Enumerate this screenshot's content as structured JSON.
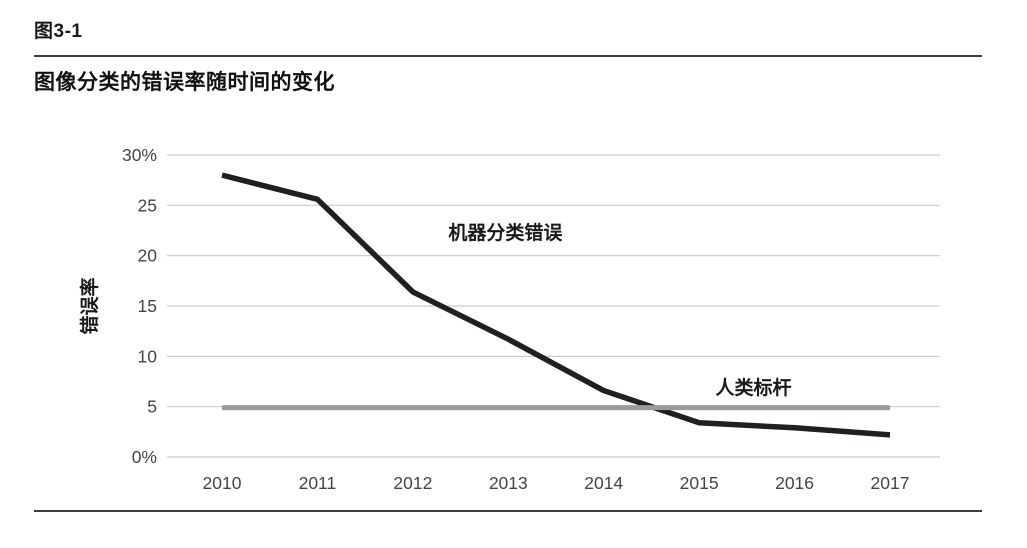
{
  "figure": {
    "number": "图3-1"
  },
  "chart_data": {
    "type": "line",
    "title": "图像分类的错误率随时间的变化",
    "x": [
      2010,
      2011,
      2012,
      2013,
      2014,
      2015,
      2016,
      2017
    ],
    "series": [
      {
        "name": "机器分类错误",
        "values": [
          28.0,
          25.6,
          16.4,
          11.7,
          6.6,
          3.4,
          2.9,
          2.2
        ],
        "color": "#231f20",
        "stroke_width": 5.5
      },
      {
        "name": "人类标杆",
        "values": [
          4.9,
          4.9,
          4.9,
          4.9,
          4.9,
          4.9,
          4.9,
          4.9
        ],
        "color": "#9b9b9b",
        "stroke_width": 5
      }
    ],
    "xlabel": "",
    "ylabel": "错误率",
    "ylim": [
      0,
      30
    ],
    "yticks": [
      {
        "value": 30,
        "label": "30%"
      },
      {
        "value": 25,
        "label": "25"
      },
      {
        "value": 20,
        "label": "20"
      },
      {
        "value": 15,
        "label": "15"
      },
      {
        "value": 10,
        "label": "10"
      },
      {
        "value": 5,
        "label": "5"
      },
      {
        "value": 0,
        "label": "0%"
      }
    ],
    "grid": true,
    "legend_position": "inline-annotations",
    "annotations": [
      {
        "text": "机器分类错误",
        "x": 2012.97,
        "y": 22.35
      },
      {
        "text": "人类标杆",
        "x": 2015.57,
        "y": 6.95
      }
    ]
  },
  "colors": {
    "machine_line": "#231f20",
    "human_line": "#9b9b9b",
    "gridline": "#c9c9c9",
    "rule": "#3d3d3d",
    "title_text": "#111111",
    "tick_text": "#454545",
    "annotation_text": "#1a1a1a"
  }
}
